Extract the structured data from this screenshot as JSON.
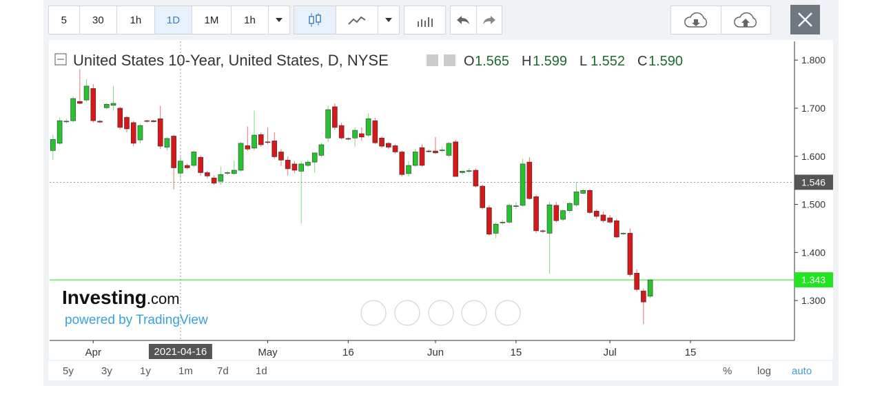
{
  "ui": {
    "toolbar": [
      "5",
      "30",
      "1h",
      "1D",
      "1M",
      "1h"
    ],
    "active_interval": "1D",
    "range_buttons": [
      "5y",
      "3y",
      "1y",
      "1m",
      "7d",
      "1d"
    ],
    "scale_buttons": [
      "%",
      "log",
      "auto"
    ],
    "active_scale": "auto",
    "logo": {
      "brand": "Investing",
      "suffix": ".com",
      "powered": "powered by TradingView"
    }
  },
  "chart_data": {
    "type": "candlestick",
    "title": "United States 10-Year, United States, D, NYSE",
    "legend": [
      {
        "name": "O",
        "label": "1.565"
      },
      {
        "name": "H",
        "label": "1.599"
      },
      {
        "name": "L",
        "label": "1.552"
      },
      {
        "name": "C",
        "label": "1.590"
      }
    ],
    "crosshair": {
      "index": 19,
      "date_label": "2021-04-16",
      "price": {
        "value": 1.546,
        "label": "1.546"
      }
    },
    "last_price": {
      "value": 1.343,
      "label": "1.343"
    },
    "up_color": "#27c22e",
    "down_color": "#d61818",
    "last_color": "#22e522",
    "categories": [
      null,
      null,
      null,
      null,
      null,
      null,
      "Apr",
      null,
      null,
      null,
      null,
      null,
      null,
      null,
      null,
      null,
      null,
      null,
      null,
      null,
      null,
      null,
      null,
      null,
      null,
      null,
      null,
      null,
      null,
      null,
      null,
      null,
      "May",
      null,
      null,
      null,
      null,
      null,
      null,
      null,
      null,
      null,
      null,
      null,
      "16",
      null,
      null,
      null,
      null,
      null,
      null,
      null,
      null,
      null,
      null,
      null,
      null,
      "Jun",
      null,
      null,
      null,
      null,
      null,
      null,
      null,
      null,
      null,
      null,
      null,
      "15",
      null,
      null,
      null,
      null,
      null,
      null,
      null,
      null,
      null,
      null,
      null,
      null,
      null,
      "Jul",
      null,
      null,
      null,
      null,
      null,
      null,
      null,
      null,
      null,
      null,
      null,
      "15",
      null,
      null,
      null,
      null,
      null,
      null,
      null,
      null,
      null,
      null,
      null,
      null,
      null,
      null,
      null
    ],
    "open": [
      1.612,
      1.627,
      1.672,
      1.674,
      1.714,
      1.717,
      1.741,
      1.673,
      1.701,
      1.706,
      1.7,
      1.681,
      1.67,
      1.634,
      1.674,
      1.674,
      1.678,
      1.619,
      1.642,
      1.565,
      1.581,
      1.581,
      1.598,
      1.566,
      1.555,
      1.548,
      1.565,
      1.564,
      1.571,
      1.622,
      1.617,
      1.645,
      1.63,
      1.632,
      1.609,
      1.592,
      1.584,
      1.569,
      1.581,
      1.588,
      1.602,
      1.638,
      1.703,
      1.664,
      1.637,
      1.638,
      1.647,
      1.644,
      1.674,
      1.638,
      1.627,
      1.622,
      1.609,
      1.564,
      1.581,
      1.618,
      1.611,
      1.611,
      1.612,
      1.602,
      1.63,
      1.566,
      1.569,
      1.571,
      1.538,
      1.493,
      1.44,
      1.462,
      1.463,
      1.496,
      1.498,
      1.588,
      1.516,
      1.445,
      1.44,
      1.498,
      1.469,
      1.487,
      1.499,
      1.523,
      1.529,
      1.486,
      1.478,
      1.472,
      1.466,
      1.439,
      1.44,
      1.357,
      1.32,
      1.309,
      null,
      null,
      null,
      null,
      null,
      null,
      null,
      null,
      null,
      null,
      null,
      null,
      null,
      null,
      null,
      null,
      null,
      null,
      null,
      null,
      null
    ],
    "high": [
      1.645,
      1.681,
      1.678,
      1.725,
      1.781,
      1.76,
      1.75,
      1.676,
      1.711,
      1.746,
      1.703,
      1.684,
      1.674,
      1.667,
      1.676,
      1.676,
      1.705,
      1.64,
      1.645,
      1.599,
      1.585,
      1.612,
      1.602,
      1.57,
      1.56,
      1.578,
      1.57,
      1.59,
      1.63,
      1.662,
      1.695,
      1.65,
      1.66,
      1.65,
      1.615,
      1.6,
      1.59,
      1.59,
      1.592,
      1.607,
      1.628,
      1.705,
      1.71,
      1.67,
      1.64,
      1.66,
      1.66,
      1.69,
      1.68,
      1.642,
      1.63,
      1.625,
      1.612,
      1.59,
      1.615,
      1.625,
      1.614,
      1.64,
      1.62,
      1.63,
      1.634,
      1.57,
      1.575,
      1.575,
      1.541,
      1.498,
      1.462,
      1.468,
      1.502,
      1.505,
      1.595,
      1.598,
      1.52,
      1.448,
      1.505,
      1.505,
      1.49,
      1.505,
      1.547,
      1.532,
      1.532,
      1.49,
      1.485,
      1.478,
      1.47,
      1.442,
      1.45,
      1.365,
      1.325,
      1.343,
      null,
      null,
      null,
      null,
      null,
      null,
      null,
      null,
      null,
      null,
      null,
      null,
      null,
      null,
      null,
      null,
      null,
      null,
      null,
      null,
      null
    ],
    "low": [
      1.592,
      1.624,
      1.668,
      1.67,
      1.708,
      1.713,
      1.67,
      1.669,
      1.698,
      1.695,
      1.656,
      1.65,
      1.621,
      1.627,
      1.67,
      1.67,
      1.615,
      1.612,
      1.531,
      1.552,
      1.573,
      1.578,
      1.56,
      1.554,
      1.54,
      1.541,
      1.561,
      1.561,
      1.568,
      1.611,
      1.612,
      1.62,
      1.625,
      1.595,
      1.58,
      1.56,
      1.565,
      1.46,
      1.578,
      1.566,
      1.598,
      1.63,
      1.655,
      1.635,
      1.633,
      1.62,
      1.632,
      1.64,
      1.625,
      1.617,
      1.615,
      1.605,
      1.558,
      1.558,
      1.578,
      1.578,
      1.608,
      1.605,
      1.608,
      1.598,
      1.558,
      1.562,
      1.565,
      1.535,
      1.49,
      1.435,
      1.43,
      1.458,
      1.46,
      1.49,
      1.495,
      1.51,
      1.44,
      1.44,
      1.356,
      1.462,
      1.465,
      1.482,
      1.495,
      1.52,
      1.48,
      1.47,
      1.462,
      1.46,
      1.43,
      1.436,
      1.35,
      1.318,
      1.251,
      1.305,
      null,
      null,
      null,
      null,
      null,
      null,
      null,
      null,
      null,
      null,
      null,
      null,
      null,
      null,
      null,
      null,
      null,
      null,
      null,
      null,
      null
    ],
    "close": [
      1.635,
      1.674,
      1.673,
      1.72,
      1.71,
      1.746,
      1.674,
      1.671,
      1.708,
      1.71,
      1.66,
      1.657,
      1.627,
      1.664,
      1.673,
      1.672,
      1.621,
      1.637,
      1.576,
      1.59,
      1.576,
      1.609,
      1.566,
      1.559,
      1.544,
      1.562,
      1.566,
      1.571,
      1.627,
      1.615,
      1.644,
      1.624,
      1.629,
      1.599,
      1.592,
      1.574,
      1.571,
      1.584,
      1.588,
      1.607,
      1.624,
      1.697,
      1.66,
      1.638,
      1.636,
      1.654,
      1.64,
      1.678,
      1.628,
      1.621,
      1.619,
      1.609,
      1.562,
      1.581,
      1.609,
      1.581,
      1.61,
      1.607,
      1.613,
      1.627,
      1.558,
      1.569,
      1.57,
      1.538,
      1.493,
      1.438,
      1.459,
      1.463,
      1.498,
      1.497,
      1.584,
      1.512,
      1.445,
      1.444,
      1.499,
      1.466,
      1.487,
      1.502,
      1.526,
      1.529,
      1.483,
      1.475,
      1.466,
      1.463,
      1.432,
      1.44,
      1.354,
      1.323,
      1.297,
      1.343,
      null,
      null,
      null,
      null,
      null,
      null,
      null,
      null,
      null,
      null,
      null,
      null,
      null,
      null,
      null,
      null,
      null,
      null,
      null,
      null,
      null
    ],
    "ylim": [
      1.217,
      1.839
    ],
    "yticks": [
      {
        "value": 1.3,
        "label": "1.300"
      },
      {
        "value": 1.4,
        "label": "1.400"
      },
      {
        "value": 1.5,
        "label": "1.500"
      },
      {
        "value": 1.6,
        "label": "1.600"
      },
      {
        "value": 1.7,
        "label": "1.700"
      },
      {
        "value": 1.8,
        "label": "1.800"
      }
    ]
  }
}
